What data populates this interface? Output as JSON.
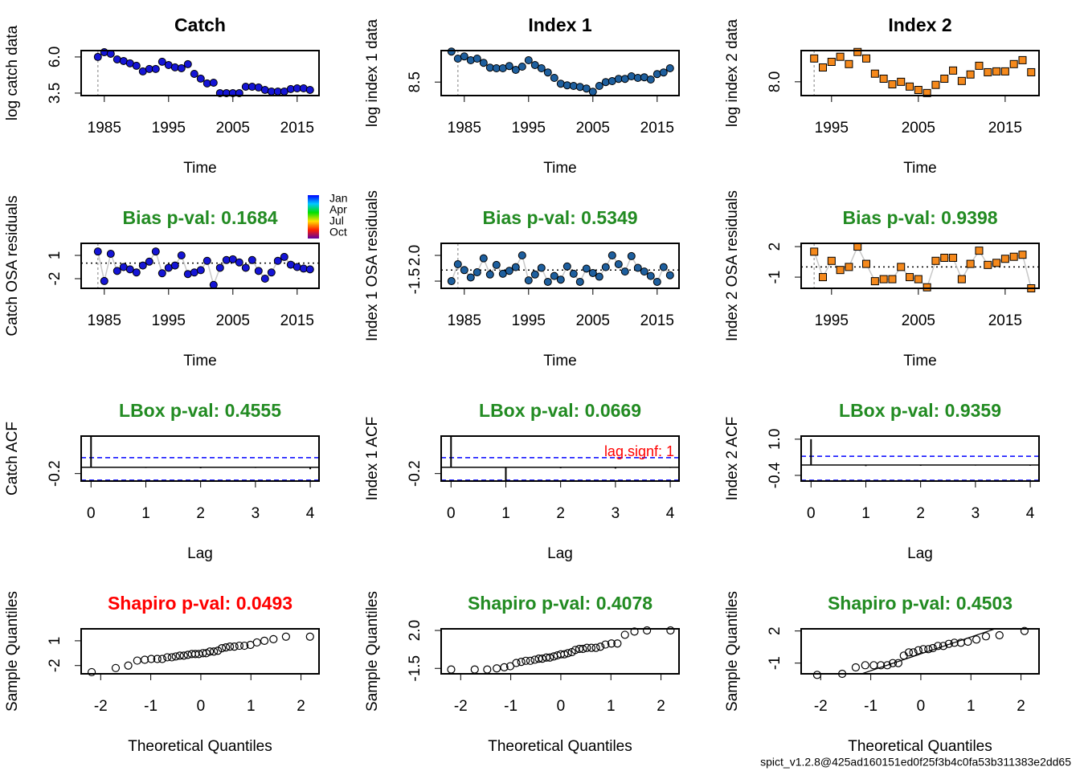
{
  "chart_data": [
    {
      "type": "scatter",
      "title": "Catch",
      "xlabel": "Time",
      "ylabel": "log catch data",
      "marker": "circle",
      "color": "#1515d6",
      "x": [
        1984,
        1985,
        1986,
        1987,
        1988,
        1989,
        1990,
        1991,
        1992,
        1993,
        1994,
        1995,
        1996,
        1997,
        1998,
        1999,
        2000,
        2001,
        2002,
        2003,
        2004,
        2005,
        2006,
        2007,
        2008,
        2009,
        2010,
        2011,
        2012,
        2013,
        2014,
        2015,
        2016,
        2017
      ],
      "values": [
        6.0,
        6.33,
        6.22,
        5.83,
        5.72,
        5.56,
        5.39,
        5.0,
        5.17,
        5.17,
        5.67,
        5.44,
        5.28,
        5.22,
        5.5,
        4.83,
        4.5,
        4.17,
        4.22,
        3.5,
        3.5,
        3.5,
        3.5,
        3.94,
        3.94,
        3.89,
        3.72,
        3.61,
        3.61,
        3.61,
        3.78,
        3.83,
        3.83,
        3.72
      ],
      "xlim": [
        1981.4,
        2018.4
      ],
      "ylim": [
        3.33,
        6.44
      ],
      "xticks": [
        1985,
        1995,
        2005,
        2015
      ],
      "yticks": [
        3.5,
        {
          "value": 6.0,
          "label": "6.0"
        }
      ],
      "vline": 1984
    },
    {
      "type": "scatter",
      "title": "Index 1",
      "xlabel": "Time",
      "ylabel": "log index 1 data",
      "marker": "circle",
      "color": "#1e5f9e",
      "x": [
        1983,
        1984,
        1985,
        1986,
        1987,
        1988,
        1989,
        1990,
        1991,
        1992,
        1993,
        1994,
        1995,
        1996,
        1997,
        1998,
        1999,
        2000,
        2001,
        2002,
        2003,
        2004,
        2005,
        2006,
        2007,
        2008,
        2009,
        2010,
        2011,
        2012,
        2013,
        2014,
        2015,
        2016,
        2017
      ],
      "values": [
        9.45,
        9.23,
        9.3,
        9.18,
        9.23,
        9.1,
        8.95,
        8.93,
        8.93,
        9.0,
        8.88,
        8.98,
        9.18,
        9.03,
        8.93,
        8.8,
        8.63,
        8.45,
        8.4,
        8.38,
        8.35,
        8.3,
        8.2,
        8.38,
        8.5,
        8.53,
        8.6,
        8.6,
        8.68,
        8.63,
        8.65,
        8.58,
        8.75,
        8.8,
        8.93
      ],
      "xlim": [
        1981.4,
        2018.4
      ],
      "ylim": [
        8.08,
        9.48
      ],
      "xticks": [
        1985,
        1995,
        2005,
        2015
      ],
      "yticks": [
        8.5
      ],
      "vline": 1984
    },
    {
      "type": "scatter",
      "title": "Index 2",
      "xlabel": "Time",
      "ylabel": "log index 2 data",
      "marker": "square",
      "color": "#f5891c",
      "x": [
        1993,
        1994,
        1995,
        1996,
        1997,
        1998,
        1999,
        2000,
        2001,
        2002,
        2003,
        2004,
        2005,
        2006,
        2007,
        2008,
        2009,
        2010,
        2011,
        2012,
        2013,
        2014,
        2015,
        2016,
        2017,
        2018
      ],
      "values": [
        8.83,
        8.51,
        8.71,
        8.89,
        8.63,
        9.06,
        8.83,
        8.29,
        8.11,
        7.91,
        8.0,
        7.83,
        7.71,
        7.6,
        7.89,
        8.11,
        8.4,
        8.03,
        8.26,
        8.57,
        8.34,
        8.37,
        8.37,
        8.63,
        8.77,
        8.34
      ],
      "xlim": [
        1991.5,
        2018.9
      ],
      "ylim": [
        7.51,
        9.11
      ],
      "xticks": [
        1995,
        2005,
        2015
      ],
      "yticks": [
        {
          "value": 8.0,
          "label": "8.0"
        }
      ],
      "vline": 1993
    },
    {
      "type": "residual",
      "title": "Bias p-val: 0.1684",
      "title_color": "#228b22",
      "xlabel": "Time",
      "ylabel": "Catch OSA residuals",
      "marker": "circle",
      "color": "#1515d6",
      "x": [
        1984,
        1985,
        1986,
        1987,
        1988,
        1989,
        1990,
        1991,
        1992,
        1993,
        1994,
        1995,
        1996,
        1997,
        1998,
        1999,
        2000,
        2001,
        2002,
        2003,
        2004,
        2005,
        2006,
        2007,
        2008,
        2009,
        2010,
        2011,
        2012,
        2013,
        2014,
        2015,
        2016,
        2017
      ],
      "values": [
        1.5,
        -2.3,
        1.2,
        -1.0,
        -0.5,
        -0.8,
        -1.2,
        -0.3,
        0.2,
        1.5,
        -1.3,
        -0.6,
        -0.3,
        1.0,
        -1.4,
        -1.2,
        -0.9,
        0.3,
        -2.8,
        -0.6,
        0.4,
        0.5,
        0.1,
        -0.6,
        0.4,
        -1.0,
        -2.0,
        -1.2,
        0.3,
        0.8,
        -0.2,
        -0.5,
        -0.7,
        -0.8
      ],
      "xlim": [
        1981.4,
        2018.4
      ],
      "ylim": [
        -3.24,
        2.55
      ],
      "xticks": [
        1985,
        1995,
        2005,
        2015
      ],
      "yticks": [
        -2,
        1
      ],
      "hline": 0,
      "vline": 1984,
      "legend_labels": [
        "Jan",
        "Apr",
        "Jul",
        "Oct"
      ]
    },
    {
      "type": "residual",
      "title": "Bias p-val: 0.5349",
      "title_color": "#228b22",
      "xlabel": "Time",
      "ylabel": "Index 1 OSA residuals",
      "marker": "circle",
      "color": "#1e5f9e",
      "x": [
        1983,
        1984,
        1985,
        1986,
        1987,
        1988,
        1989,
        1990,
        1991,
        1992,
        1993,
        1994,
        1995,
        1996,
        1997,
        1998,
        1999,
        2000,
        2001,
        2002,
        2003,
        2004,
        2005,
        2006,
        2007,
        2008,
        2009,
        2010,
        2011,
        2012,
        2013,
        2014,
        2015,
        2016,
        2017
      ],
      "values": [
        -1.5,
        0.8,
        0.0,
        -1.0,
        -0.3,
        1.6,
        -0.6,
        0.7,
        -0.5,
        -0.1,
        0.4,
        2.0,
        -1.4,
        -0.6,
        0.3,
        -1.6,
        -0.8,
        -1.3,
        0.5,
        -0.5,
        -1.6,
        0.2,
        -0.4,
        -0.9,
        0.4,
        2.0,
        0.8,
        -0.2,
        1.9,
        0.3,
        -0.2,
        -0.8,
        -1.6,
        0.4,
        -0.7
      ],
      "xlim": [
        1981.4,
        2018.4
      ],
      "ylim": [
        -2.48,
        3.64
      ],
      "xticks": [
        1985,
        1995,
        2005,
        2015
      ],
      "yticks": [
        -1.5,
        {
          "value": 2.0,
          "label": "2.0"
        }
      ],
      "hline": 0,
      "vline": 1984
    },
    {
      "type": "residual",
      "title": "Bias p-val: 0.9398",
      "title_color": "#228b22",
      "xlabel": "Time",
      "ylabel": "Index 2 OSA residuals",
      "marker": "square",
      "color": "#f5891c",
      "x": [
        1993,
        1994,
        1995,
        1996,
        1997,
        1998,
        1999,
        2000,
        2001,
        2002,
        2003,
        2004,
        2005,
        2006,
        2007,
        2008,
        2009,
        2010,
        2011,
        2012,
        2013,
        2014,
        2015,
        2016,
        2017,
        2018
      ],
      "values": [
        1.5,
        -1.0,
        0.6,
        -0.3,
        0.0,
        2.0,
        0.3,
        -1.4,
        -1.2,
        -1.2,
        0.0,
        -1.0,
        -1.2,
        -2.0,
        0.6,
        0.9,
        0.9,
        -1.2,
        0.3,
        1.6,
        0.2,
        0.4,
        0.8,
        1.0,
        1.2,
        -2.1
      ],
      "xlim": [
        1991.5,
        2018.9
      ],
      "ylim": [
        -2.1,
        2.32
      ],
      "xticks": [
        1995,
        2005,
        2015
      ],
      "yticks": [
        -1,
        2
      ],
      "hline": 0,
      "vline": 1993
    },
    {
      "type": "acf",
      "title": "LBox p-val: 0.4555",
      "title_color": "#228b22",
      "xlabel": "Lag",
      "ylabel": "Catch ACF",
      "lags": [
        0,
        1,
        2,
        3,
        4
      ],
      "values": [
        1.0,
        -0.02,
        -0.03,
        -0.02,
        -0.06
      ],
      "xlim": [
        -0.18,
        4.16
      ],
      "ylim": [
        -0.44,
        1.0
      ],
      "xticks": [
        0,
        1,
        2,
        3,
        4
      ],
      "yticks": [
        -0.2
      ],
      "hline": 0,
      "ci": [
        0.31,
        -0.41
      ]
    },
    {
      "type": "acf",
      "title": "LBox p-val: 0.0669",
      "title_color": "#228b22",
      "xlabel": "Lag",
      "ylabel": "Index 1 ACF",
      "annotation": "lag.signf: 1",
      "lags": [
        0,
        1,
        2,
        3,
        4
      ],
      "values": [
        1.0,
        -0.42,
        -0.03,
        -0.04,
        -0.02
      ],
      "xlim": [
        -0.18,
        4.16
      ],
      "ylim": [
        -0.44,
        1.0
      ],
      "xticks": [
        0,
        1,
        2,
        3,
        4
      ],
      "yticks": [
        -0.2
      ],
      "hline": 0,
      "ci": [
        0.31,
        -0.41
      ]
    },
    {
      "type": "acf",
      "title": "LBox p-val: 0.9359",
      "title_color": "#228b22",
      "xlabel": "Lag",
      "ylabel": "Index 2 ACF",
      "lags": [
        0,
        1,
        2,
        3,
        4
      ],
      "values": [
        1.0,
        -0.04,
        -0.03,
        -0.02,
        -0.03
      ],
      "xlim": [
        -0.18,
        4.16
      ],
      "ylim": [
        -0.62,
        1.12
      ],
      "xticks": [
        0,
        1,
        2,
        3,
        4
      ],
      "yticks": [
        -0.4,
        {
          "value": 1.0,
          "label": "1.0"
        }
      ],
      "hline": 0,
      "ci": [
        0.34,
        -0.59
      ]
    },
    {
      "type": "qq",
      "title": "Shapiro p-val: 0.0493",
      "title_color": "#ff0000",
      "xlabel": "Theoretical Quantiles",
      "ylabel": "Sample Quantiles",
      "x": [
        -2.18,
        -1.7,
        -1.45,
        -1.27,
        -1.12,
        -0.99,
        -0.87,
        -0.77,
        -0.67,
        -0.58,
        -0.5,
        -0.42,
        -0.34,
        -0.26,
        -0.18,
        -0.11,
        -0.04,
        0.04,
        0.11,
        0.18,
        0.26,
        0.34,
        0.42,
        0.5,
        0.58,
        0.67,
        0.77,
        0.87,
        0.99,
        1.12,
        1.27,
        1.45,
        1.7,
        2.18
      ],
      "values": [
        -2.8,
        -2.3,
        -2.0,
        -1.4,
        -1.3,
        -1.2,
        -1.2,
        -1.2,
        -1.0,
        -1.0,
        -0.9,
        -0.8,
        -0.8,
        -0.7,
        -0.6,
        -0.6,
        -0.6,
        -0.5,
        -0.5,
        -0.3,
        -0.3,
        -0.2,
        0.1,
        0.2,
        0.3,
        0.3,
        0.4,
        0.4,
        0.5,
        0.8,
        1.0,
        1.2,
        1.5,
        1.5
      ],
      "xlim": [
        -2.39,
        2.36
      ],
      "ylim": [
        -3.0,
        2.45
      ],
      "xticks": [
        -2,
        -1,
        0,
        1,
        2
      ],
      "yticks": [
        -2,
        1
      ]
    },
    {
      "type": "qq",
      "title": "Shapiro p-val: 0.4078",
      "title_color": "#228b22",
      "xlabel": "Theoretical Quantiles",
      "ylabel": "Sample Quantiles",
      "x": [
        -2.19,
        -1.72,
        -1.47,
        -1.28,
        -1.13,
        -1.01,
        -0.89,
        -0.79,
        -0.7,
        -0.61,
        -0.52,
        -0.44,
        -0.37,
        -0.29,
        -0.22,
        -0.14,
        -0.07,
        0,
        0.07,
        0.14,
        0.22,
        0.29,
        0.37,
        0.44,
        0.52,
        0.61,
        0.7,
        0.79,
        0.89,
        1.01,
        1.13,
        1.28,
        1.47,
        1.72,
        2.19
      ],
      "values": [
        -1.6,
        -1.6,
        -1.6,
        -1.5,
        -1.4,
        -1.3,
        -1.0,
        -0.9,
        -0.8,
        -0.8,
        -0.7,
        -0.6,
        -0.6,
        -0.5,
        -0.5,
        -0.4,
        -0.3,
        -0.2,
        -0.2,
        -0.1,
        0.0,
        0.2,
        0.3,
        0.3,
        0.4,
        0.4,
        0.4,
        0.5,
        0.7,
        0.8,
        0.8,
        1.6,
        1.9,
        2.0,
        2.0
      ],
      "xlim": [
        -2.39,
        2.36
      ],
      "ylim": [
        -2.0,
        2.15
      ],
      "xticks": [
        -2,
        -1,
        0,
        1,
        2
      ],
      "yticks": [
        -1.5,
        {
          "value": 2.0,
          "label": "2.0"
        }
      ]
    },
    {
      "type": "qq",
      "title": "Shapiro p-val: 0.4503",
      "title_color": "#228b22",
      "xlabel": "Theoretical Quantiles",
      "ylabel": "Sample Quantiles",
      "x": [
        -2.07,
        -1.57,
        -1.3,
        -1.11,
        -0.94,
        -0.8,
        -0.67,
        -0.56,
        -0.45,
        -0.34,
        -0.24,
        -0.15,
        -0.05,
        0.05,
        0.15,
        0.24,
        0.34,
        0.45,
        0.56,
        0.67,
        0.8,
        0.94,
        1.11,
        1.3,
        1.57,
        2.07
      ],
      "values": [
        -2.1,
        -2.0,
        -1.4,
        -1.2,
        -1.2,
        -1.2,
        -1.2,
        -1.0,
        -1.0,
        -0.3,
        0.0,
        0.0,
        0.2,
        0.3,
        0.3,
        0.4,
        0.6,
        0.6,
        0.8,
        0.9,
        0.9,
        1.0,
        1.2,
        1.5,
        1.6,
        2.0
      ],
      "xlim": [
        -2.39,
        2.36
      ],
      "ylim": [
        -2.0,
        2.2
      ],
      "xticks": [
        -2,
        -1,
        0,
        1,
        2
      ],
      "yticks": [
        -1,
        2
      ]
    }
  ],
  "footer": "spict_v1.2.8@425ad160151ed0f25f3b4c0fa53b311383e2dd65"
}
